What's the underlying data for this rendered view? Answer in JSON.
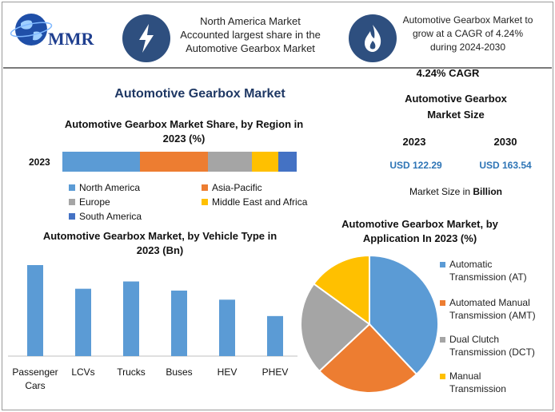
{
  "logo": {
    "text": "MMR"
  },
  "header": {
    "fact1": "North America Market Accounted largest share in the Automotive Gearbox Market",
    "fact2": "Automotive Gearbox Market to grow at a CAGR of 4.24% during 2024-2030"
  },
  "main_title": "Automotive Gearbox Market",
  "cagr": "4.24% CAGR",
  "size_title": "Automotive Gearbox Market Size",
  "sizes": [
    {
      "year": "2023",
      "value": "USD 122.29"
    },
    {
      "year": "2030",
      "value": "USD 163.54"
    }
  ],
  "size_unit_prefix": "Market Size in ",
  "size_unit_bold": "Billion",
  "colors": {
    "blue": "#5b9bd5",
    "orange": "#ed7d31",
    "gray": "#a5a5a5",
    "yellow": "#ffc000",
    "darkblue": "#4472c4",
    "accent": "#2e75b6",
    "icon_bg": "#2e4f7f"
  },
  "icons": [
    "globe-icon",
    "lightning-icon",
    "flame-icon"
  ],
  "chart_data": [
    {
      "type": "bar",
      "orientation": "horizontal-stacked",
      "title": "Automotive Gearbox Market Share, by Region in 2023 (%)",
      "categories": [
        "2023"
      ],
      "series": [
        {
          "name": "North America",
          "values": [
            33
          ]
        },
        {
          "name": "Asia-Pacific",
          "values": [
            29
          ]
        },
        {
          "name": "Europe",
          "values": [
            19
          ]
        },
        {
          "name": "Middle East and Africa",
          "values": [
            11
          ]
        },
        {
          "name": "South America",
          "values": [
            8
          ]
        }
      ],
      "legend": "bottom"
    },
    {
      "type": "bar",
      "title": "Automotive Gearbox Market, by Vehicle Type in 2023 (Bn)",
      "categories": [
        "Passenger Cars",
        "LCVs",
        "Trucks",
        "Buses",
        "HEV",
        "PHEV"
      ],
      "values": [
        100,
        74,
        82,
        72,
        62,
        44
      ],
      "ylim": [
        0,
        100
      ],
      "grid": false
    },
    {
      "type": "pie",
      "title": "Automotive Gearbox Market, by Application In 2023 (%)",
      "labels": [
        "Automatic Transmission (AT)",
        "Automated Manual Transmission (AMT)",
        "Dual Clutch Transmission (DCT)",
        "Manual Transmission"
      ],
      "values": [
        38,
        25,
        22,
        15
      ],
      "legend": "right"
    }
  ]
}
